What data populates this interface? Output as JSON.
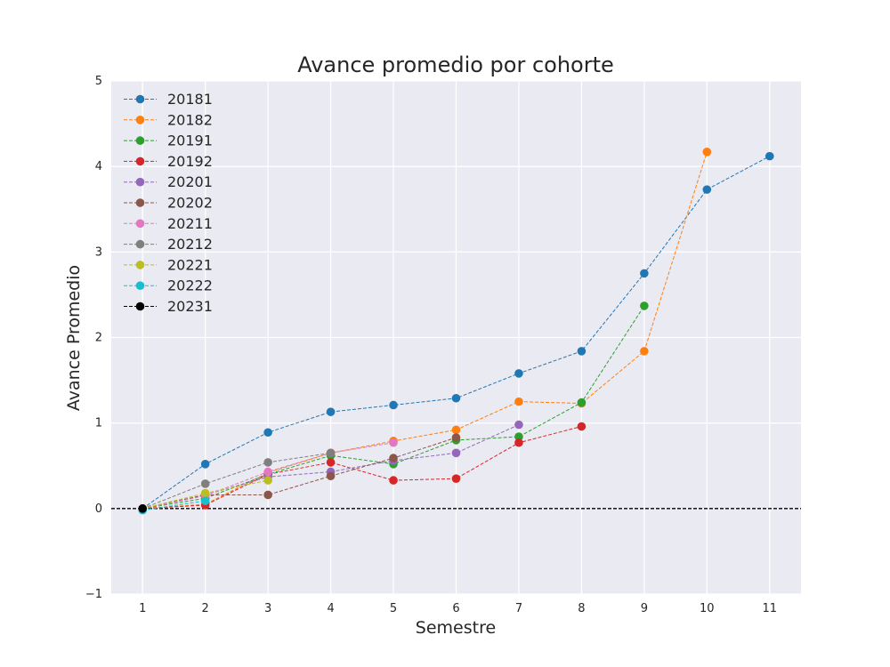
{
  "chart_data": {
    "type": "line",
    "title": "Avance promedio por cohorte",
    "xlabel": "Semestre",
    "ylabel": "Avance Promedio",
    "xlim": [
      0.5,
      11.5
    ],
    "ylim": [
      -1,
      5
    ],
    "x_ticks": [
      1,
      2,
      3,
      4,
      5,
      6,
      7,
      8,
      9,
      10,
      11
    ],
    "y_ticks": [
      -1,
      0,
      1,
      2,
      3,
      4,
      5
    ],
    "y_tick_labels": [
      "−1",
      "0",
      "1",
      "2",
      "3",
      "4",
      "5"
    ],
    "grid": true,
    "legend_position": "upper-left",
    "line_style": "dashed",
    "reference_line": {
      "y": 0,
      "style": "dashed",
      "color": "#000000"
    },
    "background_color": "#eaeaf2",
    "series": [
      {
        "name": "20181",
        "color": "#1f77b4",
        "x": [
          1,
          2,
          3,
          4,
          5,
          6,
          7,
          8,
          9,
          10,
          11
        ],
        "y": [
          0,
          0.52,
          0.89,
          1.13,
          1.21,
          1.29,
          1.58,
          1.84,
          2.75,
          3.73,
          4.12
        ]
      },
      {
        "name": "20182",
        "color": "#ff7f0e",
        "x": [
          1,
          2,
          3,
          4,
          5,
          6,
          7,
          8,
          9,
          10
        ],
        "y": [
          0,
          0.05,
          0.42,
          0.65,
          0.79,
          0.92,
          1.25,
          1.23,
          1.84,
          4.17
        ]
      },
      {
        "name": "20191",
        "color": "#2ca02c",
        "x": [
          1,
          2,
          3,
          4,
          5,
          6,
          7,
          8,
          9
        ],
        "y": [
          0,
          0.12,
          0.4,
          0.62,
          0.52,
          0.8,
          0.84,
          1.24,
          2.37
        ]
      },
      {
        "name": "20192",
        "color": "#d62728",
        "x": [
          1,
          2,
          3,
          4,
          5,
          6,
          7,
          8
        ],
        "y": [
          0,
          0.04,
          0.4,
          0.54,
          0.33,
          0.35,
          0.77,
          0.96
        ]
      },
      {
        "name": "20201",
        "color": "#9467bd",
        "x": [
          1,
          2,
          3,
          4,
          5,
          6,
          7
        ],
        "y": [
          0,
          0.16,
          0.37,
          0.43,
          0.56,
          0.65,
          0.98
        ]
      },
      {
        "name": "20202",
        "color": "#8c564b",
        "x": [
          1,
          2,
          3,
          4,
          5,
          6
        ],
        "y": [
          0,
          0.16,
          0.16,
          0.38,
          0.59,
          0.83
        ]
      },
      {
        "name": "20211",
        "color": "#e377c2",
        "x": [
          1,
          2,
          3,
          4,
          5
        ],
        "y": [
          0,
          0.15,
          0.43,
          0.65,
          0.77
        ]
      },
      {
        "name": "20212",
        "color": "#7f7f7f",
        "x": [
          1,
          2,
          3,
          4
        ],
        "y": [
          0,
          0.29,
          0.54,
          0.65
        ]
      },
      {
        "name": "20221",
        "color": "#bcbd22",
        "x": [
          1,
          2,
          3
        ],
        "y": [
          0,
          0.18,
          0.33
        ]
      },
      {
        "name": "20222",
        "color": "#17becf",
        "x": [
          1,
          2
        ],
        "y": [
          -0.02,
          0.09
        ]
      },
      {
        "name": "20231",
        "color": "#000000",
        "x": [
          1
        ],
        "y": [
          0
        ]
      }
    ]
  }
}
